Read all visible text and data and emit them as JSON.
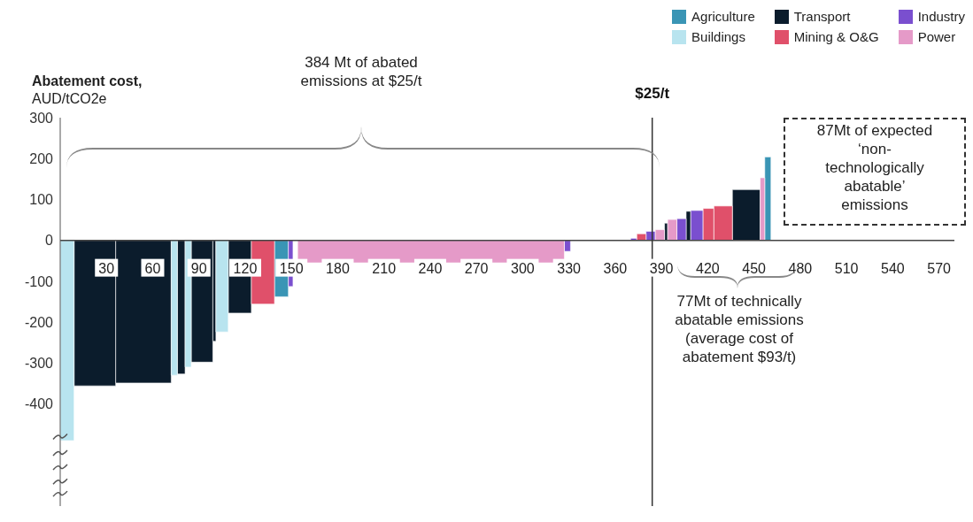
{
  "chart_data": {
    "type": "histogram",
    "ylabel": "Abatement cost,\nAUD/tCO2e",
    "bins": [
      0,
      9,
      36,
      72,
      76,
      81,
      85,
      99,
      101,
      109,
      124,
      139,
      148,
      151,
      154,
      327,
      331,
      370,
      374,
      380,
      386,
      392,
      394,
      400,
      406,
      409,
      417,
      424,
      436,
      454,
      457,
      461
    ],
    "series": [
      {
        "name": "Agriculture",
        "color": "#3a95b5",
        "values": [
          null,
          null,
          null,
          null,
          null,
          null,
          null,
          null,
          null,
          null,
          null,
          -138,
          null,
          null,
          null,
          null,
          null,
          null,
          null,
          null,
          null,
          null,
          null,
          null,
          null,
          null,
          null,
          null,
          null,
          null,
          204
        ]
      },
      {
        "name": "Transport",
        "color": "#0b1c2c",
        "values": [
          null,
          -356,
          -349,
          null,
          -327,
          null,
          -298,
          -247,
          null,
          -178,
          null,
          null,
          null,
          null,
          null,
          null,
          null,
          null,
          null,
          null,
          null,
          42,
          null,
          null,
          71,
          null,
          null,
          null,
          124,
          null,
          null
        ]
      },
      {
        "name": "Industry",
        "color": "#7a4fcf",
        "values": [
          null,
          null,
          null,
          null,
          null,
          null,
          null,
          null,
          null,
          null,
          null,
          null,
          -113,
          null,
          null,
          -27,
          null,
          5,
          null,
          22,
          null,
          null,
          null,
          53,
          null,
          73,
          null,
          null,
          null,
          null,
          null
        ]
      },
      {
        "name": "Buildings",
        "color": "#b8e4ef",
        "values": [
          -490,
          null,
          null,
          -330,
          null,
          -310,
          null,
          null,
          -224,
          null,
          null,
          null,
          null,
          null,
          null,
          null,
          null,
          null,
          null,
          null,
          null,
          null,
          null,
          null,
          null,
          null,
          null,
          null,
          null,
          null,
          null
        ]
      },
      {
        "name": "Mining & O&G",
        "color": "#e0506a",
        "values": [
          null,
          null,
          null,
          null,
          null,
          null,
          null,
          null,
          null,
          null,
          -156,
          null,
          null,
          null,
          null,
          null,
          null,
          null,
          16,
          null,
          null,
          null,
          null,
          null,
          null,
          null,
          78,
          84,
          null,
          null,
          null
        ]
      },
      {
        "name": "Power",
        "color": "#e59ac8",
        "values": [
          null,
          null,
          null,
          null,
          null,
          null,
          null,
          null,
          null,
          null,
          null,
          null,
          null,
          null,
          -55,
          null,
          null,
          null,
          null,
          null,
          26,
          null,
          51,
          null,
          null,
          null,
          null,
          null,
          null,
          153,
          null
        ]
      }
    ],
    "xlim": [
      0,
      580
    ],
    "xticks": [
      30,
      60,
      90,
      120,
      150,
      180,
      210,
      240,
      270,
      300,
      330,
      360,
      390,
      420,
      450,
      480,
      510,
      540,
      570
    ],
    "ylim": [
      -650,
      300
    ],
    "yticks": [
      -400,
      -300,
      -200,
      -100,
      0,
      100,
      200,
      300
    ],
    "ref_lines": [
      {
        "axis": "x",
        "value": 384,
        "label": "$25/t",
        "color": "#333333"
      }
    ],
    "annotations": [
      "384 Mt of abated emissions at $25/t",
      "87Mt of expected ‘non-technologically abatable’ emissions",
      "77Mt of technically abatable emissions (average cost of abatement $93/t)"
    ],
    "legend": "top right"
  }
}
